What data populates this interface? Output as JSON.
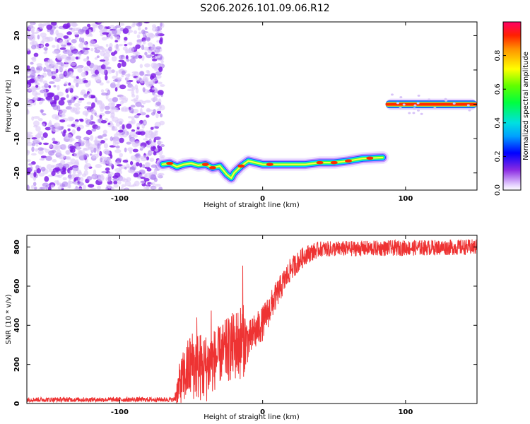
{
  "title": "S206.2026.101.09.06.R12",
  "chart_data": [
    {
      "type": "heatmap",
      "xlabel": "Height of straight line (km)",
      "ylabel": "Frequency (Hz)",
      "xlim": [
        -165,
        150
      ],
      "ylim": [
        -25,
        24
      ],
      "xticks": [
        -100,
        0,
        100
      ],
      "yticks": [
        20,
        10,
        0,
        -10,
        -20
      ],
      "noise_region_x": [
        -165,
        -70
      ],
      "ridge": [
        {
          "x": -70,
          "y": -17.5
        },
        {
          "x": -65,
          "y": -17.2
        },
        {
          "x": -60,
          "y": -18.2
        },
        {
          "x": -55,
          "y": -17.5
        },
        {
          "x": -50,
          "y": -17.2
        },
        {
          "x": -45,
          "y": -17.8
        },
        {
          "x": -40,
          "y": -17.5
        },
        {
          "x": -35,
          "y": -18.5
        },
        {
          "x": -30,
          "y": -18.0
        },
        {
          "x": -25,
          "y": -20.5
        },
        {
          "x": -22,
          "y": -21.5
        },
        {
          "x": -20,
          "y": -20.0
        },
        {
          "x": -15,
          "y": -18.0
        },
        {
          "x": -10,
          "y": -16.5
        },
        {
          "x": -5,
          "y": -17.0
        },
        {
          "x": 0,
          "y": -17.5
        },
        {
          "x": 10,
          "y": -17.5
        },
        {
          "x": 20,
          "y": -17.5
        },
        {
          "x": 30,
          "y": -17.5
        },
        {
          "x": 40,
          "y": -17.0
        },
        {
          "x": 50,
          "y": -17.0
        },
        {
          "x": 60,
          "y": -16.5
        },
        {
          "x": 70,
          "y": -15.8
        },
        {
          "x": 84,
          "y": -15.5
        }
      ],
      "ridge_upper": {
        "x": [
          86,
          150
        ],
        "y": 0
      },
      "colorbar": {
        "label": "Normalized spectral amplitude",
        "range": [
          0,
          1
        ],
        "ticks": [
          "0.0",
          "0.2",
          "0.4",
          "0.6",
          "0.8"
        ],
        "tick_values": [
          0,
          0.2,
          0.4,
          0.6,
          0.8
        ]
      }
    },
    {
      "type": "line",
      "xlabel": "Height of straight line (km)",
      "ylabel": "SNR (10 * v/v)",
      "xlim": [
        -165,
        150
      ],
      "ylim": [
        0,
        860
      ],
      "xticks": [
        -100,
        0,
        100
      ],
      "yticks": [
        0,
        200,
        400,
        600,
        800
      ],
      "series": [
        {
          "name": "SNR",
          "color": "#ee3333",
          "envelope": [
            {
              "x": -165,
              "mean": 20,
              "amp": 12
            },
            {
              "x": -62,
              "mean": 20,
              "amp": 12
            },
            {
              "x": -58,
              "mean": 100,
              "amp": 120
            },
            {
              "x": -50,
              "mean": 200,
              "amp": 180
            },
            {
              "x": -40,
              "mean": 180,
              "amp": 180
            },
            {
              "x": -30,
              "mean": 250,
              "amp": 150
            },
            {
              "x": -14,
              "mean": 320,
              "amp": 200
            },
            {
              "x": -10,
              "mean": 320,
              "amp": 100
            },
            {
              "x": 0,
              "mean": 410,
              "amp": 90
            },
            {
              "x": 10,
              "mean": 560,
              "amp": 70
            },
            {
              "x": 20,
              "mean": 690,
              "amp": 60
            },
            {
              "x": 30,
              "mean": 760,
              "amp": 50
            },
            {
              "x": 40,
              "mean": 790,
              "amp": 40
            },
            {
              "x": 150,
              "mean": 800,
              "amp": 40
            }
          ],
          "peaks": [
            {
              "x": -46,
              "y": 440
            },
            {
              "x": -36,
              "y": 475
            },
            {
              "x": -14,
              "y": 705
            },
            {
              "x": -6,
              "y": 450
            }
          ]
        }
      ]
    }
  ]
}
